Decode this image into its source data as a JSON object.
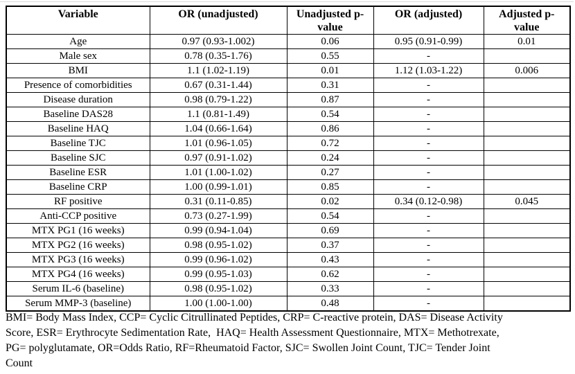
{
  "table": {
    "columns": [
      "Variable",
      "OR (unadjusted)",
      "Unadjusted p-value",
      "OR (adjusted)",
      "Adjusted p-value"
    ],
    "rows": [
      [
        "Age",
        "0.97 (0.93-1.002)",
        "0.06",
        "0.95 (0.91-0.99)",
        "0.01"
      ],
      [
        "Male sex",
        "0.78 (0.35-1.76)",
        "0.55",
        "-",
        ""
      ],
      [
        "BMI",
        "1.1 (1.02-1.19)",
        "0.01",
        "1.12 (1.03-1.22)",
        "0.006"
      ],
      [
        "Presence of comorbidities",
        "0.67 (0.31-1.44)",
        "0.31",
        "-",
        ""
      ],
      [
        "Disease duration",
        "0.98 (0.79-1.22)",
        "0.87",
        "-",
        ""
      ],
      [
        "Baseline DAS28",
        "1.1 (0.81-1.49)",
        "0.54",
        "-",
        ""
      ],
      [
        "Baseline HAQ",
        "1.04 (0.66-1.64)",
        "0.86",
        "-",
        ""
      ],
      [
        "Baseline TJC",
        "1.01 (0.96-1.05)",
        "0.72",
        "-",
        ""
      ],
      [
        "Baseline SJC",
        "0.97 (0.91-1.02)",
        "0.24",
        "-",
        ""
      ],
      [
        "Baseline ESR",
        "1.01 (1.00-1.02)",
        "0.27",
        "-",
        ""
      ],
      [
        "Baseline CRP",
        "1.00 (0.99-1.01)",
        "0.85",
        "-",
        ""
      ],
      [
        "RF positive",
        "0.31 (0.11-0.85)",
        "0.02",
        "0.34 (0.12-0.98)",
        "0.045"
      ],
      [
        "Anti-CCP positive",
        "0.73 (0.27-1.99)",
        "0.54",
        "-",
        ""
      ],
      [
        "MTX PG1 (16 weeks)",
        "0.99 (0.94-1.04)",
        "0.69",
        "-",
        ""
      ],
      [
        "MTX PG2 (16 weeks)",
        "0.98 (0.95-1.02)",
        "0.37",
        "-",
        ""
      ],
      [
        "MTX PG3 (16 weeks)",
        "0.99 (0.96-1.02)",
        "0.43",
        "-",
        ""
      ],
      [
        "MTX PG4 (16 weeks)",
        "0.99 (0.95-1.03)",
        "0.62",
        "-",
        ""
      ],
      [
        "Serum IL-6 (baseline)",
        "0.98 (0.95-1.02)",
        "0.33",
        "-",
        ""
      ],
      [
        "Serum MMP-3 (baseline)",
        "1.00 (1.00-1.00)",
        "0.48",
        "-",
        ""
      ]
    ]
  },
  "footnote": {
    "lines": [
      "BMI= Body Mass Index, CCP= Cyclic Citrullinated Peptides, CRP= C-reactive protein, DAS= Disease Activity",
      "Score, ESR= Erythrocyte Sedimentation Rate,  HAQ= Health Assessment Questionnaire, MTX= Methotrexate,",
      "PG= polyglutamate, OR=Odds Ratio, RF=Rheumatoid Factor, SJC= Swollen Joint Count, TJC= Tender Joint",
      "Count"
    ]
  },
  "colors": {
    "border": "#000000",
    "text": "#000000",
    "background": "#ffffff",
    "top_rule": "#d9d9d9"
  }
}
